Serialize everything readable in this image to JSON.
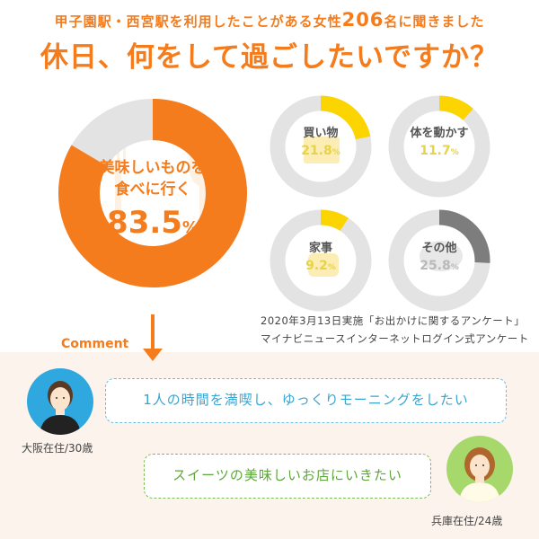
{
  "header": {
    "survey_prefix": "甲子園駅・西宮駅を利用したことがある女性",
    "survey_count": "206",
    "survey_suffix": "名に聞きました",
    "question": "休日、何をして過ごしたいですか？"
  },
  "chart_data": [
    {
      "type": "pie",
      "title": "",
      "label_lines": [
        "美味しいものを",
        "食べに行く"
      ],
      "value": 83.5,
      "value_text": "83.5",
      "unit": "%",
      "color": "#f47c1c",
      "track_color": "#e3e3e3"
    },
    {
      "type": "pie",
      "title": "",
      "label": "買い物",
      "value": 21.8,
      "value_text": "21.8",
      "unit": "%",
      "color": "#fcd400",
      "track_color": "#e3e3e3"
    },
    {
      "type": "pie",
      "title": "",
      "label": "体を動かす",
      "value": 11.7,
      "value_text": "11.7",
      "unit": "%",
      "color": "#fcd400",
      "track_color": "#e3e3e3"
    },
    {
      "type": "pie",
      "title": "",
      "label": "家事",
      "value": 9.2,
      "value_text": "9.2",
      "unit": "%",
      "color": "#fcd400",
      "track_color": "#e3e3e3"
    },
    {
      "type": "pie",
      "title": "",
      "label": "その他",
      "value": 25.8,
      "value_text": "25.8",
      "unit": "%",
      "color": "#7d7d7d",
      "track_color": "#e3e3e3"
    }
  ],
  "source": {
    "line1": "2020年3月13日実施「お出かけに関するアンケート」",
    "line2": "マイナビニュースインターネットログイン式アンケート"
  },
  "comments": {
    "heading": "Comment",
    "items": [
      {
        "text": "1人の時間を満喫し、ゆっくりモーニングをしたい",
        "person": "大阪在住/30歳",
        "color": "#3aa5cf"
      },
      {
        "text": "スイーツの美味しいお店にいきたい",
        "person": "兵庫在住/24歳",
        "color": "#5ea83b"
      }
    ]
  },
  "colors": {
    "accent": "#f47c1c",
    "minor_accent": "#fcd400",
    "track": "#e3e3e3"
  }
}
